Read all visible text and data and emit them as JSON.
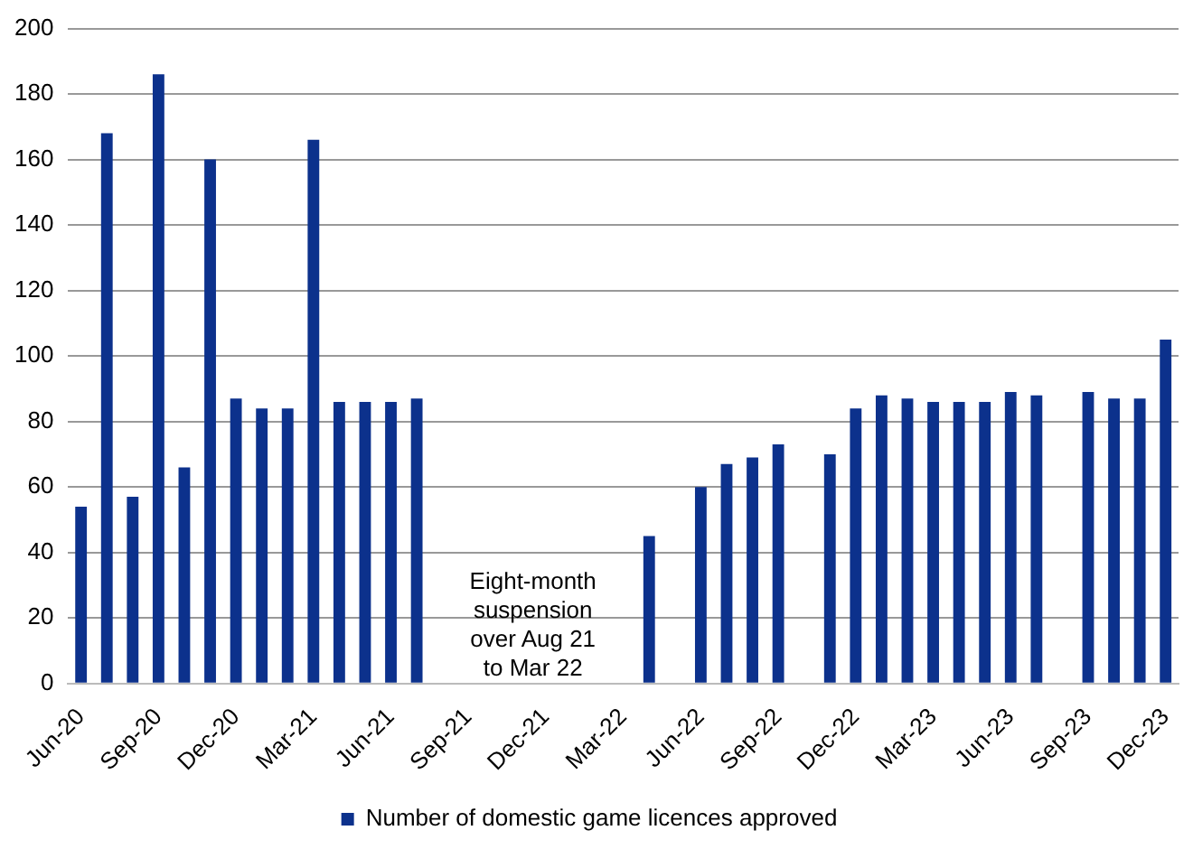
{
  "chart_data": {
    "type": "bar",
    "categories": [
      "Jun-20",
      null,
      null,
      "Sep-20",
      null,
      null,
      "Dec-20",
      null,
      null,
      "Mar-21",
      null,
      null,
      "Jun-21",
      null,
      null,
      "Sep-21",
      null,
      null,
      "Dec-21",
      null,
      null,
      "Mar-22",
      null,
      null,
      "Jun-22",
      null,
      null,
      "Sep-22",
      null,
      null,
      "Dec-22",
      null,
      null,
      "Mar-23",
      null,
      null,
      "Jun-23",
      null,
      null,
      "Sep-23",
      null,
      null,
      "Dec-23"
    ],
    "series": [
      {
        "name": "Number of domestic game licences approved",
        "color": "#0c318c",
        "values": [
          54,
          168,
          57,
          186,
          66,
          160,
          87,
          84,
          84,
          166,
          86,
          86,
          86,
          87,
          null,
          null,
          null,
          null,
          null,
          null,
          null,
          null,
          45,
          null,
          60,
          67,
          69,
          73,
          null,
          70,
          84,
          88,
          87,
          86,
          86,
          86,
          89,
          88,
          null,
          89,
          87,
          87,
          105
        ]
      }
    ],
    "ylim": [
      0,
      200
    ],
    "yticks": [
      0,
      20,
      40,
      60,
      80,
      100,
      120,
      140,
      160,
      180,
      200
    ],
    "grid": "y",
    "legend": "bottom",
    "annotations": [
      "Eight-month\nsuspension\nover Aug 21\nto Mar 22"
    ]
  }
}
